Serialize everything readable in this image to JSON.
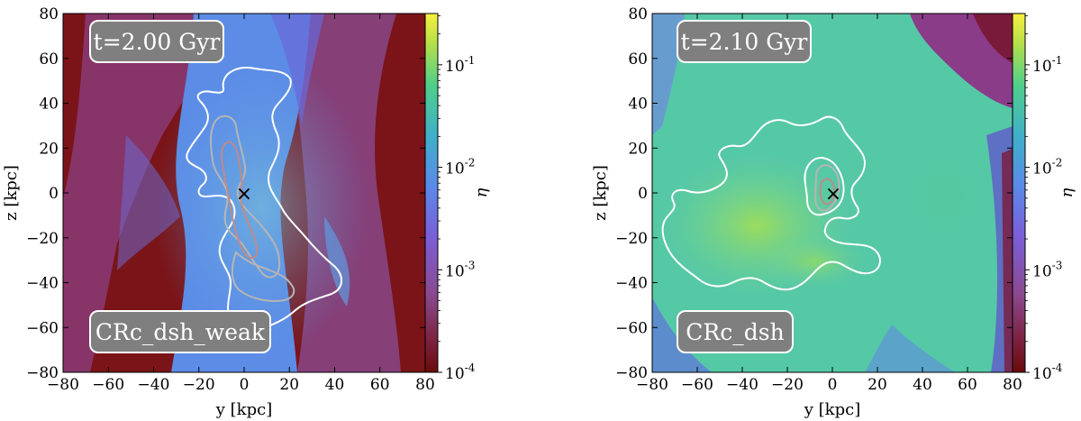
{
  "chart_data": [
    {
      "type": "heatmap",
      "time_label": "t=2.00 Gyr",
      "run_label": "CRc_dsh_weak",
      "xlabel": "y [kpc]",
      "ylabel": "z [kpc]",
      "colorbar_label": "η",
      "xlim": [
        -80,
        80
      ],
      "ylim": [
        -80,
        80
      ],
      "x_ticks": [
        "−80",
        "−60",
        "−40",
        "−20",
        "0",
        "20",
        "40",
        "60",
        "80"
      ],
      "y_ticks": [
        "80",
        "60",
        "40",
        "20",
        "0",
        "−20",
        "−40",
        "−60",
        "−80"
      ],
      "colorbar_log_range": [
        -4,
        -0.5
      ],
      "colorbar_ticks": [
        {
          "base": "10",
          "exp": "-1",
          "log": -1
        },
        {
          "base": "10",
          "exp": "-2",
          "log": -2
        },
        {
          "base": "10",
          "exp": "-3",
          "log": -3
        },
        {
          "base": "10",
          "exp": "-4",
          "log": -4
        }
      ],
      "background_level": "dark-red/purple outside, blue inside central column",
      "marker": {
        "symbol": "×",
        "x": 0,
        "y": 0
      }
    },
    {
      "type": "heatmap",
      "time_label": "t=2.10 Gyr",
      "run_label": "CRc_dsh",
      "xlabel": "y [kpc]",
      "ylabel": "z [kpc]",
      "colorbar_label": "η",
      "xlim": [
        -80,
        80
      ],
      "ylim": [
        -80,
        80
      ],
      "x_ticks": [
        "−80",
        "−60",
        "−40",
        "−20",
        "0",
        "20",
        "40",
        "60",
        "80"
      ],
      "y_ticks": [
        "80",
        "60",
        "40",
        "20",
        "0",
        "−20",
        "−40",
        "−60",
        "−80"
      ],
      "colorbar_log_range": [
        -4,
        -0.5
      ],
      "colorbar_ticks": [
        {
          "base": "10",
          "exp": "-1",
          "log": -1
        },
        {
          "base": "10",
          "exp": "-2",
          "log": -2
        },
        {
          "base": "10",
          "exp": "-3",
          "log": -3
        },
        {
          "base": "10",
          "exp": "-4",
          "log": -4
        }
      ],
      "background_level": "mostly green/teal, purple in corners",
      "marker": {
        "symbol": "×",
        "x": 0,
        "y": 0
      }
    }
  ],
  "colors": {
    "viridis_low": "#440154",
    "viridis_mid": "#21918c",
    "viridis_high": "#fde725",
    "dark_red": "#7a0c0c",
    "contour_outer": "#ffffff",
    "contour_inner": "#b8b8b8",
    "contour_core": "#c08080",
    "label_box": "#7f7f7f"
  }
}
